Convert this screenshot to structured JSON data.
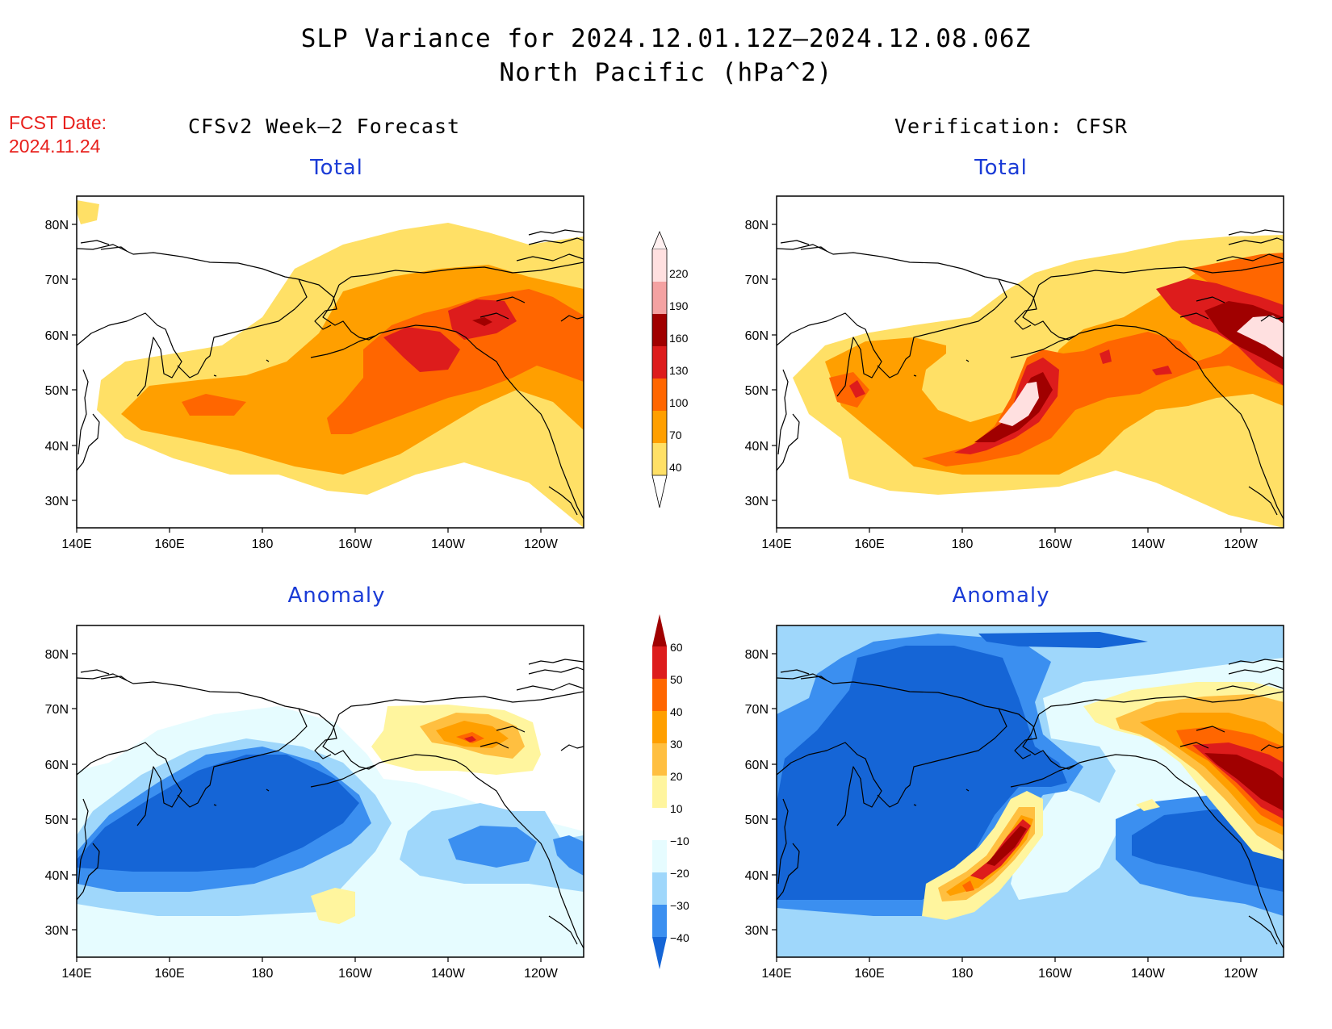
{
  "title": {
    "line1": "SLP Variance for 2024.12.01.12Z—2024.12.08.06Z",
    "line2": "North Pacific (hPa^2)"
  },
  "fcst_date": {
    "label": "FCST Date:",
    "value": "2024.11.24"
  },
  "columns": {
    "left": "CFSv2 Week—2 Forecast",
    "right": "Verification: CFSR"
  },
  "panel_titles": {
    "top_left": "Total",
    "top_right": "Total",
    "bottom_left": "Anomaly",
    "bottom_right": "Anomaly"
  },
  "axes": {
    "lat_labels": [
      "80N",
      "70N",
      "60N",
      "50N",
      "40N",
      "30N"
    ],
    "lon_labels": [
      "140E",
      "160E",
      "180",
      "160W",
      "140W",
      "120W"
    ]
  },
  "colorbar_total": {
    "levels": [
      "220",
      "190",
      "160",
      "130",
      "100",
      "70",
      "40"
    ],
    "colors": [
      "#ffe0e0",
      "#f4a2a2",
      "#a00000",
      "#dd1c1c",
      "#ff6600",
      "#ff9f00",
      "#ffe066"
    ]
  },
  "colorbar_anomaly": {
    "levels": [
      "60",
      "50",
      "40",
      "30",
      "20",
      "10",
      "−10",
      "−20",
      "−30",
      "−40"
    ],
    "warm_colors": [
      "#a00000",
      "#dd1c1c",
      "#ff6600",
      "#ff9f00",
      "#ffbf40",
      "#fff59e"
    ],
    "cool_colors": [
      "#e6fcff",
      "#9fd7fb",
      "#3b8ff0",
      "#1565d6"
    ],
    "neutral_color": "#ffffff"
  }
}
